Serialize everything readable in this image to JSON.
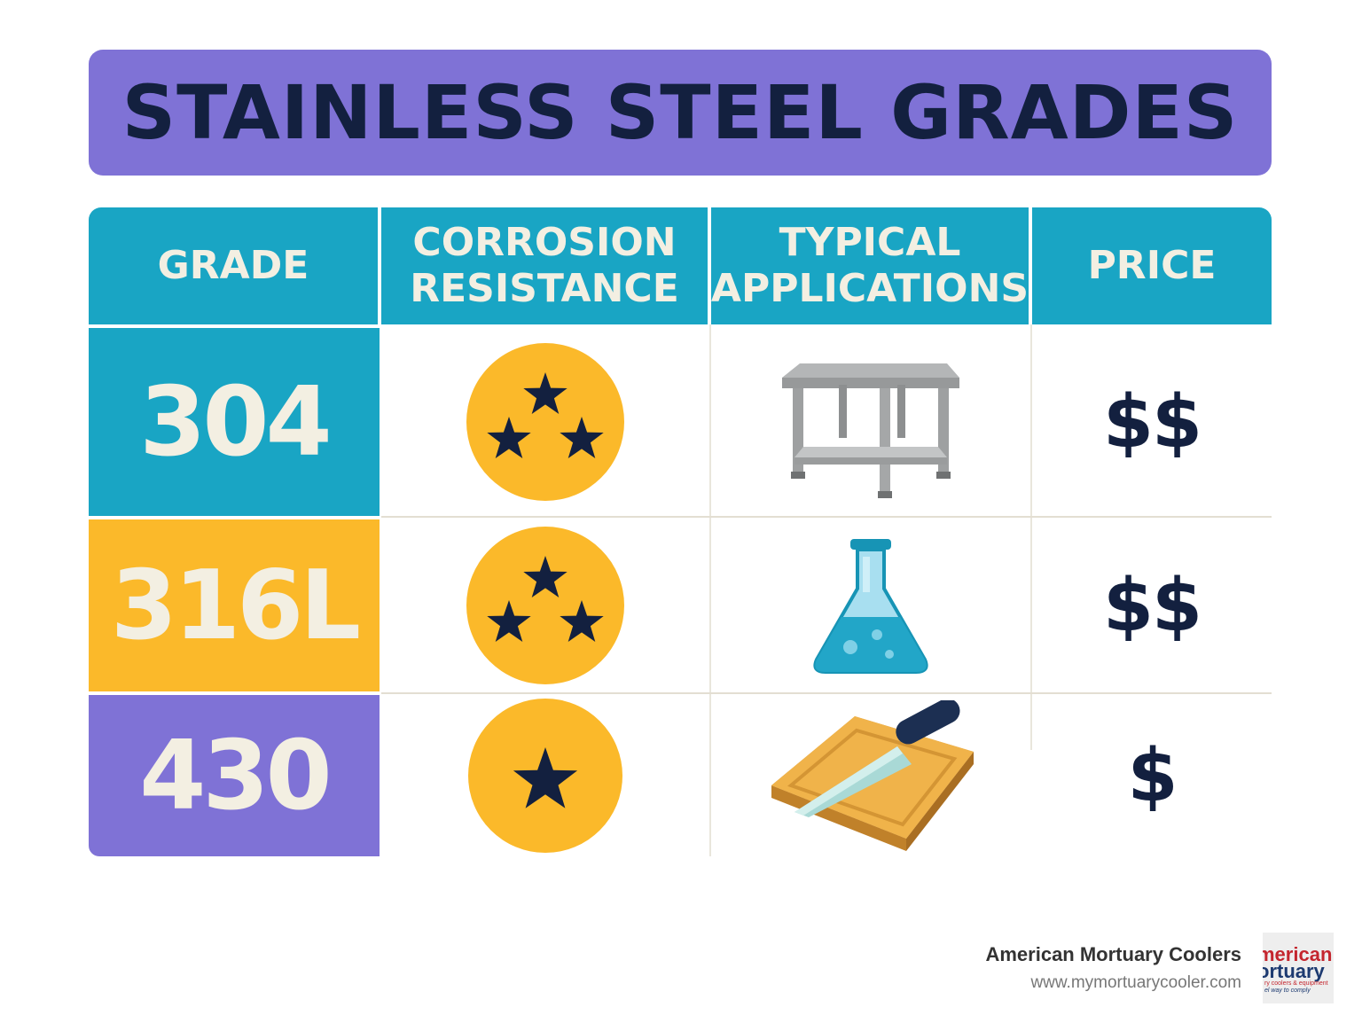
{
  "title": "STAINLESS STEEL GRADES",
  "headers": {
    "grade": "GRADE",
    "corrosion": [
      "CORROSION",
      "RESISTANCE"
    ],
    "applications": [
      "TYPICAL",
      "APPLICATIONS"
    ],
    "price": "PRICE"
  },
  "rows": [
    {
      "grade": "304",
      "corrosion_stars": 3,
      "application_icon": "steel-table-icon",
      "price": "$$"
    },
    {
      "grade": "316L",
      "corrosion_stars": 3,
      "application_icon": "lab-flask-icon",
      "price": "$$"
    },
    {
      "grade": "430",
      "corrosion_stars": 1,
      "application_icon": "knife-cutting-board-icon",
      "price": "$"
    }
  ],
  "footer": {
    "company": "American Mortuary Coolers",
    "url": "www.mymortuarycooler.com",
    "logo_text": [
      "merican",
      "ortuary",
      "ry coolers & equipment",
      "el way to comply"
    ]
  },
  "colors": {
    "purple": "#7f72d6",
    "teal": "#19a5c4",
    "yellow": "#fbb92a",
    "navy": "#13203f",
    "cream": "#f3efe2"
  }
}
